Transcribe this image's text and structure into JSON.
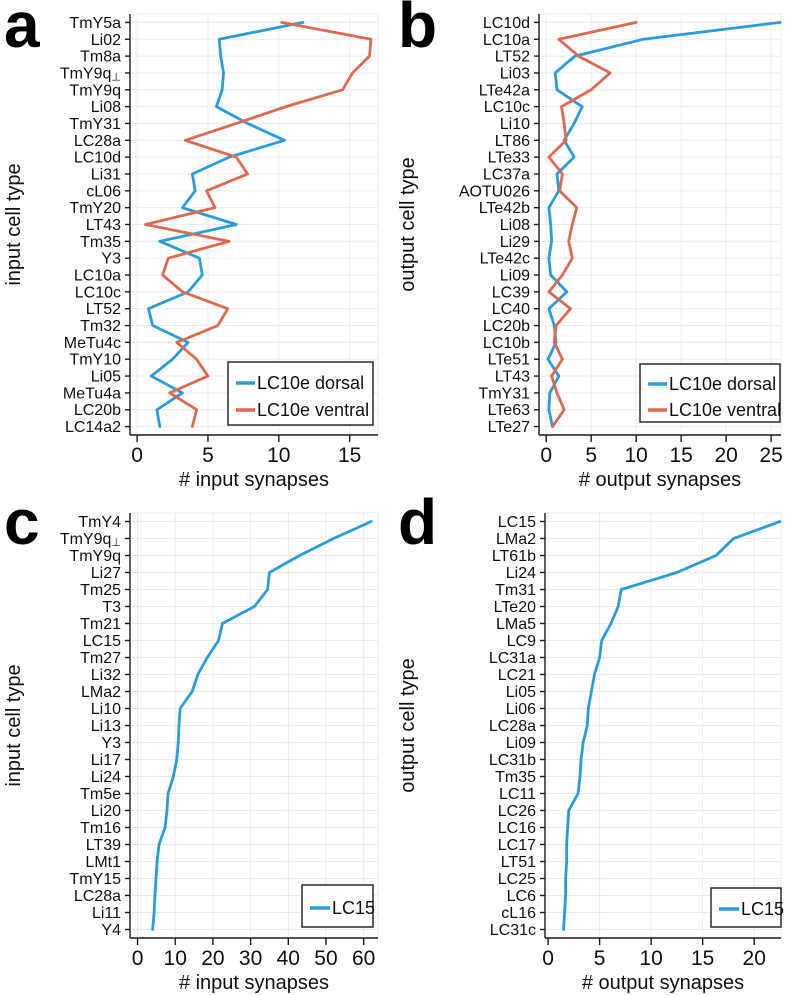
{
  "figure": {
    "kind": "four-panel scientific figure",
    "panel_labels": [
      "a",
      "b",
      "c",
      "d"
    ]
  },
  "colors": {
    "dorsal_blue": "#2B9BD9",
    "ventral_orange": "#DC6A51",
    "lc15_blue": "#2B9BD9",
    "grid": "#EBEBEB",
    "axis": "#1A1A1A",
    "legend_border": "#2B2B2B",
    "background": "#FFFFFF"
  },
  "chart_data": [
    {
      "panel_label": "a",
      "type": "line",
      "orientation": "horizontal-categories",
      "xlabel": "# input synapses",
      "ylabel": "input cell type",
      "xticks": [
        0,
        5,
        10,
        15
      ],
      "xlim": [
        -0.5,
        17.0
      ],
      "grid": true,
      "legend_position": "bottom-right",
      "categories": [
        "TmY5a",
        "Li02",
        "Tm8a",
        "TmY9q⊥",
        "TmY9q",
        "Li08",
        "TmY31",
        "LC28a",
        "LC10d",
        "Li31",
        "cL06",
        "TmY20",
        "LT43",
        "Tm35",
        "Y3",
        "LC10a",
        "LC10c",
        "LT52",
        "Tm32",
        "MeTu4c",
        "TmY10",
        "Li05",
        "MeTu4a",
        "LC20b",
        "LC14a2"
      ],
      "series": [
        {
          "name": "LC10e dorsal",
          "color": "#2B9BD9",
          "values": [
            11.7,
            5.8,
            5.9,
            6.1,
            6.0,
            5.6,
            7.8,
            10.4,
            6.5,
            3.9,
            4.1,
            3.2,
            7.0,
            1.6,
            4.4,
            4.6,
            3.6,
            0.8,
            1.1,
            3.6,
            2.5,
            1.0,
            3.2,
            1.4,
            1.6
          ]
        },
        {
          "name": "LC10e ventral",
          "color": "#DC6A51",
          "values": [
            10.2,
            16.5,
            16.4,
            15.2,
            14.5,
            10.5,
            7.0,
            3.4,
            7.0,
            7.8,
            4.9,
            5.5,
            0.6,
            6.5,
            2.2,
            1.8,
            3.2,
            6.4,
            5.7,
            2.8,
            4.2,
            5.0,
            2.3,
            4.2,
            3.9
          ]
        }
      ]
    },
    {
      "panel_label": "b",
      "type": "line",
      "orientation": "horizontal-categories",
      "xlabel": "# output synapses",
      "ylabel": "output cell type",
      "xticks": [
        0,
        5,
        10,
        15,
        20,
        25
      ],
      "xlim": [
        -0.8,
        26.1
      ],
      "grid": true,
      "legend_position": "bottom-right",
      "categories": [
        "LC10d",
        "LC10a",
        "LT52",
        "Li03",
        "LTe42a",
        "LC10c",
        "Li10",
        "LT86",
        "LTe33",
        "LC37a",
        "AOTU026",
        "LTe42b",
        "Li08",
        "Li29",
        "LTe42c",
        "Li09",
        "LC39",
        "LC40",
        "LC20b",
        "LC10b",
        "LTe51",
        "LT43",
        "TmY31",
        "LTe63",
        "LTe27"
      ],
      "series": [
        {
          "name": "LC10e dorsal",
          "color": "#2B9BD9",
          "values": [
            26.0,
            10.8,
            3.2,
            1.0,
            1.2,
            4.0,
            3.1,
            2.0,
            3.1,
            1.2,
            1.4,
            0.3,
            0.5,
            0.6,
            0.3,
            0.5,
            2.3,
            0.3,
            0.9,
            1.1,
            0.2,
            1.4,
            0.4,
            0.3,
            0.7
          ]
        },
        {
          "name": "LC10e ventral",
          "color": "#DC6A51",
          "values": [
            10.0,
            1.4,
            3.6,
            7.1,
            5.0,
            1.7,
            2.0,
            2.2,
            0.3,
            1.8,
            1.5,
            3.4,
            2.9,
            2.5,
            2.9,
            1.8,
            0.3,
            2.7,
            1.1,
            0.9,
            1.8,
            0.6,
            1.2,
            2.0,
            0.7
          ]
        }
      ]
    },
    {
      "panel_label": "c",
      "type": "line",
      "orientation": "horizontal-categories",
      "xlabel": "# input synapses",
      "ylabel": "input cell type",
      "xticks": [
        0,
        10,
        20,
        30,
        40,
        50,
        60
      ],
      "xlim": [
        -2.0,
        63.8
      ],
      "grid": true,
      "legend_position": "bottom-right",
      "categories": [
        "TmY4",
        "TmY9q⊥",
        "TmY9q",
        "Li27",
        "Tm25",
        "T3",
        "Tm21",
        "LC15",
        "Tm27",
        "Li32",
        "LMa2",
        "Li10",
        "Li13",
        "Y3",
        "Li17",
        "Li24",
        "Tm5e",
        "Li20",
        "Tm16",
        "LT39",
        "LMt1",
        "TmY15",
        "LC28a",
        "Li11",
        "Y4"
      ],
      "series": [
        {
          "name": "LC15",
          "color": "#2B9BD9",
          "values": [
            62,
            52,
            43,
            35,
            34.5,
            31,
            22.5,
            21.5,
            18.5,
            16,
            14.5,
            11.3,
            11.0,
            10.8,
            10.4,
            9.5,
            8.1,
            7.8,
            7.3,
            5.7,
            5.2,
            4.9,
            4.6,
            4.4,
            4.0
          ]
        }
      ]
    },
    {
      "panel_label": "d",
      "type": "line",
      "orientation": "horizontal-categories",
      "xlabel": "# output synapses",
      "ylabel": "output cell type",
      "xticks": [
        0,
        5,
        10,
        15,
        20
      ],
      "xlim": [
        -0.3,
        22.6
      ],
      "grid": true,
      "legend_position": "bottom-right",
      "categories": [
        "LC15",
        "LMa2",
        "LT61b",
        "Li24",
        "Tm31",
        "LTe20",
        "LMa5",
        "LC9",
        "LC31a",
        "LC21",
        "Li05",
        "Li06",
        "LC28a",
        "Li09",
        "LC31b",
        "Tm35",
        "LC11",
        "LC26",
        "LC16",
        "LC17",
        "LT51",
        "LC25",
        "LC6",
        "cL16",
        "LC31c"
      ],
      "series": [
        {
          "name": "LC15",
          "color": "#2B9BD9",
          "values": [
            22.5,
            18,
            16.3,
            12.5,
            7.1,
            6.8,
            6.1,
            5.2,
            5.0,
            4.5,
            4.2,
            3.9,
            3.8,
            3.4,
            3.2,
            3.1,
            2.9,
            2.0,
            1.9,
            1.8,
            1.8,
            1.7,
            1.7,
            1.6,
            1.5
          ]
        }
      ]
    }
  ]
}
